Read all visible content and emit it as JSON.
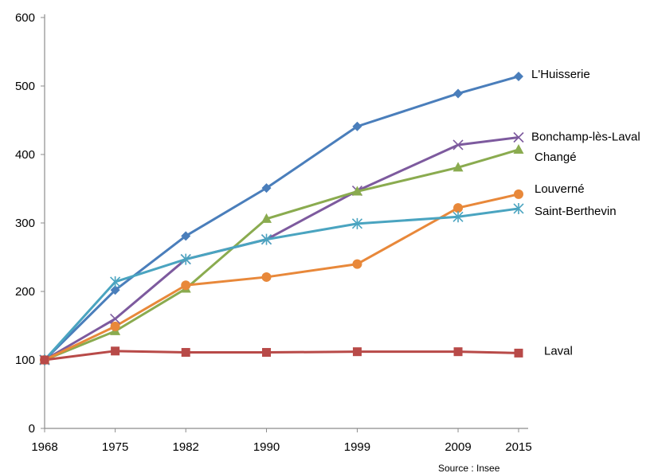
{
  "chart_data": {
    "type": "line",
    "x": [
      1968,
      1975,
      1982,
      1990,
      1999,
      2009,
      2015
    ],
    "ylim": [
      0,
      600
    ],
    "yticks": [
      0,
      100,
      200,
      300,
      400,
      500,
      600
    ],
    "xticks": [
      "1968",
      "1975",
      "1982",
      "1990",
      "1999",
      "2009",
      "2015"
    ],
    "grid": false,
    "legend": "end-labels",
    "source": "Source : Insee",
    "series": [
      {
        "name": "L'Huisserie",
        "color": "#4a7ebb",
        "marker": "diamond",
        "values": [
          100,
          202,
          281,
          351,
          441,
          489,
          514
        ]
      },
      {
        "name": "Bonchamp-lès-Laval",
        "color": "#7d5a9e",
        "marker": "x",
        "values": [
          100,
          160,
          247,
          276,
          347,
          414,
          425
        ]
      },
      {
        "name": "Changé",
        "color": "#8aab4f",
        "marker": "triangle",
        "values": [
          100,
          142,
          204,
          306,
          346,
          381,
          407
        ]
      },
      {
        "name": "Louverné",
        "color": "#e8883a",
        "marker": "circle",
        "values": [
          100,
          149,
          209,
          221,
          240,
          322,
          342
        ]
      },
      {
        "name": "Saint-Berthevin",
        "color": "#4aa4c0",
        "marker": "star",
        "values": [
          100,
          214,
          247,
          276,
          299,
          309,
          321
        ]
      },
      {
        "name": "Laval",
        "color": "#b84a48",
        "marker": "square",
        "values": [
          100,
          113,
          111,
          111,
          112,
          112,
          110
        ]
      }
    ]
  }
}
